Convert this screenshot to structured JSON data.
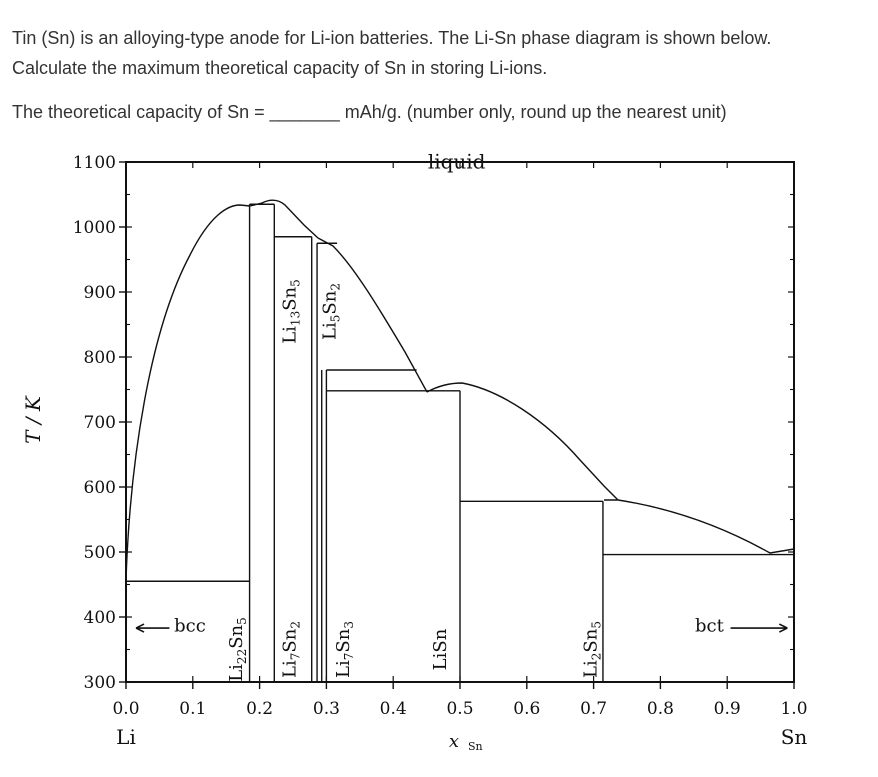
{
  "question": {
    "line1": "Tin (Sn) is an alloying-type anode for Li-ion batteries. The Li-Sn phase diagram is shown below.",
    "line2": "Calculate the maximum theoretical capacity of Sn in storing Li-ions.",
    "answer_prompt": "The theoretical capacity of Sn = _______ mAh/g. (number only, round up the nearest unit)"
  },
  "diagram": {
    "ylabel": "T / K",
    "xlabel_main": "x",
    "xlabel_sub": "Sn",
    "xlim": [
      0.0,
      1.0
    ],
    "ylim": [
      300,
      1100
    ],
    "yticks": [
      "300",
      "400",
      "500",
      "600",
      "700",
      "800",
      "900",
      "1000",
      "1100"
    ],
    "xticks": [
      "0.0",
      "0.1",
      "0.2",
      "0.3",
      "0.4",
      "0.5",
      "0.6",
      "0.7",
      "0.8",
      "0.9",
      "1.0"
    ],
    "x_end_labels": {
      "left": "Li",
      "right": "Sn"
    },
    "region_labels": {
      "liquid": "liquid",
      "bcc": "bcc",
      "bct": "bct"
    },
    "phases": [
      {
        "main": "Li",
        "sub1": "22",
        "mid": "Sn",
        "sub2": "5",
        "x": 0.185,
        "label_x": 0.165,
        "label_y": 350
      },
      {
        "main": "Li",
        "sub1": "7",
        "mid": "Sn",
        "sub2": "2",
        "x": 0.222,
        "label_x": 0.245,
        "label_y": 350
      },
      {
        "main": "Li",
        "sub1": "13",
        "mid": "Sn",
        "sub2": "5",
        "x": 0.278,
        "label_x": 0.245,
        "label_y": 870
      },
      {
        "main": "Li",
        "sub1": "5",
        "mid": "Sn",
        "sub2": "2",
        "x": 0.286,
        "label_x": 0.305,
        "label_y": 870
      },
      {
        "main": "Li",
        "sub1": "7",
        "mid": "Sn",
        "sub2": "3",
        "x": 0.3,
        "label_x": 0.325,
        "label_y": 350
      },
      {
        "main": "LiSn",
        "sub1": "",
        "mid": "",
        "sub2": "",
        "x": 0.5,
        "label_x": 0.47,
        "label_y": 350
      },
      {
        "main": "Li",
        "sub1": "2",
        "mid": "Sn",
        "sub2": "5",
        "x": 0.714,
        "label_x": 0.695,
        "label_y": 350
      }
    ]
  }
}
